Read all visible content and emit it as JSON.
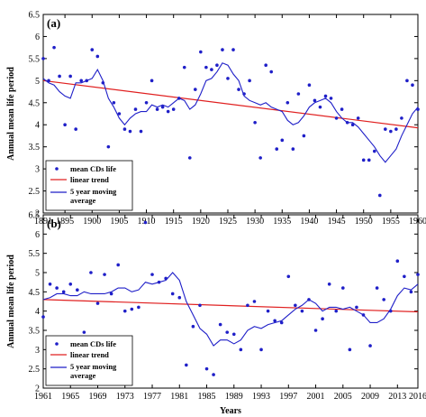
{
  "chart_data": [
    {
      "type": "scatter",
      "panel_label": "(a)",
      "ylabel": "Annual mean life period",
      "xlabel": "",
      "xlim": [
        1891,
        1960
      ],
      "ylim": [
        2,
        6.5
      ],
      "xticks": [
        1891,
        1895,
        1900,
        1905,
        1910,
        1915,
        1920,
        1925,
        1930,
        1935,
        1940,
        1945,
        1950,
        1955,
        1960
      ],
      "yticks": [
        2,
        2.5,
        3,
        3.5,
        4,
        4.5,
        5,
        5.5,
        6,
        6.5
      ],
      "grid": false,
      "legend_position": "bottom-left",
      "colors": {
        "points": "#1f1fc8",
        "trend": "#e02020",
        "moving_average": "#1f1fc8"
      },
      "series": [
        {
          "name": "mean CDs life",
          "kind": "points",
          "x": [
            1891,
            1892,
            1893,
            1894,
            1895,
            1896,
            1897,
            1898,
            1899,
            1900,
            1901,
            1902,
            1903,
            1904,
            1905,
            1906,
            1907,
            1908,
            1909,
            1910,
            1911,
            1912,
            1913,
            1914,
            1915,
            1916,
            1917,
            1918,
            1919,
            1920,
            1921,
            1922,
            1923,
            1924,
            1925,
            1926,
            1927,
            1928,
            1929,
            1930,
            1931,
            1932,
            1933,
            1934,
            1935,
            1936,
            1937,
            1938,
            1939,
            1940,
            1941,
            1942,
            1943,
            1944,
            1945,
            1946,
            1947,
            1948,
            1949,
            1950,
            1951,
            1952,
            1953,
            1954,
            1955,
            1956,
            1957,
            1958,
            1959,
            1960
          ],
          "y": [
            5.5,
            5.0,
            5.75,
            5.1,
            4.0,
            5.1,
            3.9,
            5.0,
            5.0,
            5.7,
            5.55,
            4.95,
            3.5,
            4.5,
            4.25,
            3.9,
            3.85,
            4.35,
            3.85,
            4.5,
            5.0,
            4.35,
            4.4,
            4.3,
            4.35,
            4.6,
            5.3,
            3.25,
            4.8,
            5.65,
            5.3,
            5.25,
            5.35,
            5.7,
            5.05,
            5.7,
            4.8,
            4.7,
            5.0,
            4.05,
            3.25,
            5.35,
            5.2,
            3.45,
            3.65,
            4.5,
            3.45,
            4.7,
            3.75,
            4.9,
            4.55,
            4.4,
            4.65,
            4.6,
            4.15,
            4.35,
            4.05,
            4.0,
            4.15,
            3.2,
            3.2,
            3.4,
            2.4,
            3.9,
            3.85,
            3.9,
            4.15,
            5.0,
            4.9,
            4.35
          ]
        },
        {
          "name": "linear trend",
          "kind": "line",
          "x": [
            1891,
            1960
          ],
          "y": [
            5.0,
            3.93
          ]
        },
        {
          "name": "5 year moving\naverage",
          "kind": "line",
          "x": [
            1891,
            1892,
            1893,
            1894,
            1895,
            1896,
            1897,
            1898,
            1899,
            1900,
            1901,
            1902,
            1903,
            1904,
            1905,
            1906,
            1907,
            1908,
            1909,
            1910,
            1911,
            1912,
            1913,
            1914,
            1915,
            1916,
            1917,
            1918,
            1919,
            1920,
            1921,
            1922,
            1923,
            1924,
            1925,
            1926,
            1927,
            1928,
            1929,
            1930,
            1931,
            1932,
            1933,
            1934,
            1935,
            1936,
            1937,
            1938,
            1939,
            1940,
            1941,
            1942,
            1943,
            1944,
            1945,
            1946,
            1947,
            1948,
            1949,
            1950,
            1951,
            1952,
            1953,
            1954,
            1955,
            1956,
            1957,
            1958,
            1959,
            1960
          ],
          "y": [
            5.05,
            4.95,
            4.9,
            4.75,
            4.65,
            4.6,
            4.95,
            4.95,
            5.0,
            5.05,
            5.25,
            5.0,
            4.6,
            4.4,
            4.15,
            4.0,
            4.15,
            4.25,
            4.3,
            4.3,
            4.45,
            4.4,
            4.45,
            4.4,
            4.5,
            4.6,
            4.55,
            4.35,
            4.45,
            4.7,
            5.0,
            5.05,
            5.2,
            5.4,
            5.35,
            5.15,
            5.0,
            4.65,
            4.55,
            4.5,
            4.45,
            4.5,
            4.4,
            4.35,
            4.3,
            4.1,
            4.0,
            4.05,
            4.2,
            4.4,
            4.5,
            4.55,
            4.6,
            4.5,
            4.3,
            4.15,
            4.05,
            4.05,
            3.95,
            3.8,
            3.65,
            3.5,
            3.3,
            3.15,
            3.3,
            3.45,
            3.75,
            4.0,
            4.25,
            4.4
          ]
        }
      ]
    },
    {
      "type": "scatter",
      "panel_label": "(b)",
      "ylabel": "Annual mean life period",
      "xlabel": "Years",
      "xlim": [
        1961,
        2016
      ],
      "ylim": [
        2,
        6.5
      ],
      "xticks": [
        1961,
        1965,
        1969,
        1973,
        1977,
        1981,
        1985,
        1989,
        1993,
        1997,
        2001,
        2005,
        2009,
        2013,
        2016
      ],
      "yticks": [
        2,
        2.5,
        3,
        3.5,
        4,
        4.5,
        5,
        5.5,
        6,
        6.5
      ],
      "grid": false,
      "legend_position": "bottom-left",
      "colors": {
        "points": "#1f1fc8",
        "trend": "#e02020",
        "moving_average": "#1f1fc8"
      },
      "series": [
        {
          "name": "mean CDs life",
          "kind": "points",
          "x": [
            1961,
            1962,
            1963,
            1964,
            1965,
            1966,
            1967,
            1968,
            1969,
            1970,
            1971,
            1972,
            1973,
            1974,
            1975,
            1976,
            1977,
            1978,
            1979,
            1980,
            1981,
            1982,
            1983,
            1984,
            1985,
            1986,
            1987,
            1988,
            1989,
            1990,
            1991,
            1992,
            1993,
            1994,
            1995,
            1996,
            1997,
            1998,
            1999,
            2000,
            2001,
            2002,
            2003,
            2004,
            2005,
            2006,
            2007,
            2008,
            2009,
            2010,
            2011,
            2012,
            2013,
            2014,
            2015,
            2016
          ],
          "y": [
            3.85,
            4.7,
            4.6,
            4.5,
            4.7,
            4.55,
            3.45,
            5.0,
            4.2,
            4.95,
            4.45,
            5.2,
            4.0,
            4.05,
            4.1,
            6.3,
            4.95,
            4.75,
            4.85,
            4.45,
            4.35,
            2.6,
            3.6,
            4.15,
            2.5,
            2.35,
            3.65,
            3.45,
            3.4,
            3.0,
            4.15,
            4.25,
            3.0,
            4.0,
            3.75,
            3.7,
            4.9,
            4.15,
            4.0,
            4.3,
            3.5,
            3.8,
            4.7,
            4.0,
            4.6,
            3.0,
            4.1,
            3.9,
            3.1,
            4.6,
            4.3,
            4.0,
            5.3,
            4.9,
            4.5,
            4.95
          ]
        },
        {
          "name": "linear trend",
          "kind": "line",
          "x": [
            1961,
            2016
          ],
          "y": [
            4.3,
            3.98
          ]
        },
        {
          "name": "5 year moving\naverage",
          "kind": "line",
          "x": [
            1961,
            1962,
            1963,
            1964,
            1965,
            1966,
            1967,
            1968,
            1969,
            1970,
            1971,
            1972,
            1973,
            1974,
            1975,
            1976,
            1977,
            1978,
            1979,
            1980,
            1981,
            1982,
            1983,
            1984,
            1985,
            1986,
            1987,
            1988,
            1989,
            1990,
            1991,
            1992,
            1993,
            1994,
            1995,
            1996,
            1997,
            1998,
            1999,
            2000,
            2001,
            2002,
            2003,
            2004,
            2005,
            2006,
            2007,
            2008,
            2009,
            2010,
            2011,
            2012,
            2013,
            2014,
            2015,
            2016
          ],
          "y": [
            4.3,
            4.35,
            4.45,
            4.45,
            4.4,
            4.4,
            4.5,
            4.45,
            4.45,
            4.45,
            4.5,
            4.6,
            4.6,
            4.5,
            4.55,
            4.75,
            4.7,
            4.75,
            4.8,
            5.0,
            4.8,
            4.25,
            3.9,
            3.55,
            3.4,
            3.1,
            3.25,
            3.25,
            3.15,
            3.25,
            3.5,
            3.6,
            3.55,
            3.65,
            3.7,
            3.75,
            3.9,
            4.05,
            4.15,
            4.3,
            4.2,
            4.0,
            4.1,
            4.1,
            4.05,
            4.1,
            4.0,
            3.9,
            3.7,
            3.7,
            3.8,
            4.05,
            4.4,
            4.6,
            4.55,
            4.7
          ]
        }
      ]
    }
  ]
}
